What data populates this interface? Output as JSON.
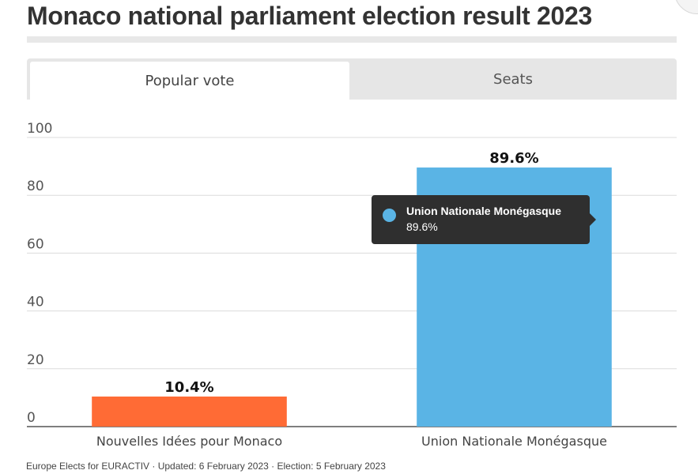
{
  "title": "Monaco national parliament election result 2023",
  "tabs": [
    {
      "label": "Popular vote",
      "active": true
    },
    {
      "label": "Seats",
      "active": false
    }
  ],
  "chart_data": {
    "type": "bar",
    "categories": [
      "Nouvelles Idées pour Monaco",
      "Union Nationale Monégasque"
    ],
    "values": [
      10.4,
      89.6
    ],
    "data_labels": [
      "10.4%",
      "89.6%"
    ],
    "colors": [
      "#ff6b35",
      "#5ab4e5"
    ],
    "ylim": [
      0,
      100
    ],
    "yticks": [
      0,
      20,
      40,
      60,
      80,
      100
    ],
    "grid": true
  },
  "tooltip": {
    "name": "Union Nationale Monégasque",
    "value": "89.6%",
    "color": "#5ab4e5"
  },
  "footer": "Europe Elects for EURACTIV · Updated: 6 February 2023 · Election: 5 February 2023"
}
